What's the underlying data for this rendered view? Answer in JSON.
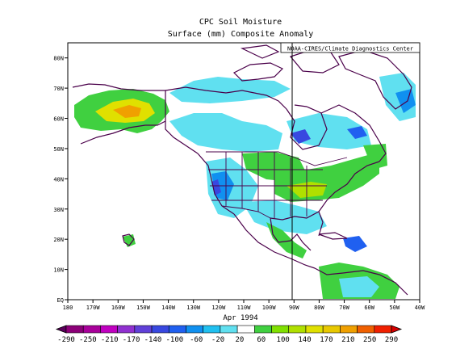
{
  "title": "CPC Soil Moisture",
  "subtitle": "Surface  (mm) Composite Anomaly",
  "credit": "NOAA-CIRES/Climate Diagnostics Center",
  "period": "Apr 1994",
  "map": {
    "lon_labels": [
      "180",
      "170W",
      "160W",
      "150W",
      "140W",
      "130W",
      "120W",
      "110W",
      "100W",
      "90W",
      "80W",
      "70W",
      "60W",
      "50W",
      "40W"
    ],
    "lat_labels": [
      "EQ",
      "10N",
      "20N",
      "30N",
      "40N",
      "50N",
      "60N",
      "70N",
      "80N"
    ],
    "lon_range": [
      -180,
      -40
    ],
    "lat_range": [
      0,
      85
    ]
  },
  "colorbar": {
    "labels": [
      "-290",
      "-250",
      "-210",
      "-170",
      "-140",
      "-100",
      "-60",
      "-20",
      "20",
      "60",
      "100",
      "140",
      "170",
      "210",
      "250",
      "290"
    ],
    "colors": [
      "#5a005a",
      "#8c0078",
      "#a8009a",
      "#c000c0",
      "#9030d0",
      "#6040d8",
      "#3848e0",
      "#2060f0",
      "#1090f0",
      "#20c0f0",
      "#60e0f0",
      "#ffffff",
      "#40d040",
      "#80e000",
      "#b0e000",
      "#e0e000",
      "#e8c800",
      "#f0a000",
      "#f06000",
      "#f02000",
      "#d80000"
    ]
  }
}
